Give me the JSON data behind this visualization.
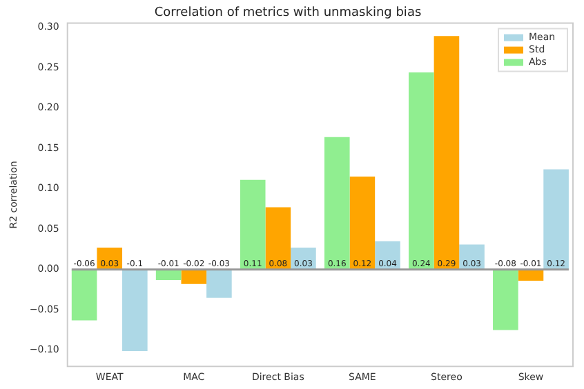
{
  "chart_data": {
    "type": "bar",
    "title": "Correlation of metrics with unmasking bias",
    "ylabel": "R2 correlation",
    "categories": [
      "WEAT",
      "MAC",
      "Direct Bias",
      "SAME",
      "Stereo",
      "Skew"
    ],
    "series": [
      {
        "name": "Abs",
        "color": "#90ee90",
        "values": [
          -0.063,
          -0.013,
          0.111,
          0.164,
          0.244,
          -0.075
        ],
        "value_labels": [
          "-0.06",
          "-0.01",
          "0.11",
          "0.16",
          "0.24",
          "-0.08"
        ]
      },
      {
        "name": "Std",
        "color": "#ffa500",
        "values": [
          0.027,
          -0.018,
          0.077,
          0.115,
          0.289,
          -0.014
        ],
        "value_labels": [
          "0.03",
          "-0.02",
          "0.08",
          "0.12",
          "0.29",
          "-0.01"
        ]
      },
      {
        "name": "Mean",
        "color": "#add8e6",
        "values": [
          -0.101,
          -0.035,
          0.027,
          0.035,
          0.031,
          0.124
        ],
        "value_labels": [
          "-0.1",
          "-0.03",
          "0.03",
          "0.04",
          "0.03",
          "0.12"
        ]
      }
    ],
    "ylim": [
      -0.12,
      0.305
    ],
    "yticks": [
      {
        "value": -0.1,
        "label": "−0.10"
      },
      {
        "value": -0.05,
        "label": "−0.05"
      },
      {
        "value": 0,
        "label": "0.00"
      },
      {
        "value": 0.05,
        "label": "0.05"
      },
      {
        "value": 0.1,
        "label": "0.10"
      },
      {
        "value": 0.15,
        "label": "0.15"
      },
      {
        "value": 0.2,
        "label": "0.20"
      },
      {
        "value": 0.25,
        "label": "0.25"
      },
      {
        "value": 0.3,
        "label": "0.30"
      }
    ],
    "ref_lines": [
      {
        "axis": "y",
        "value": 0,
        "color": "#999999"
      }
    ],
    "grid": false,
    "legend": "top right"
  }
}
